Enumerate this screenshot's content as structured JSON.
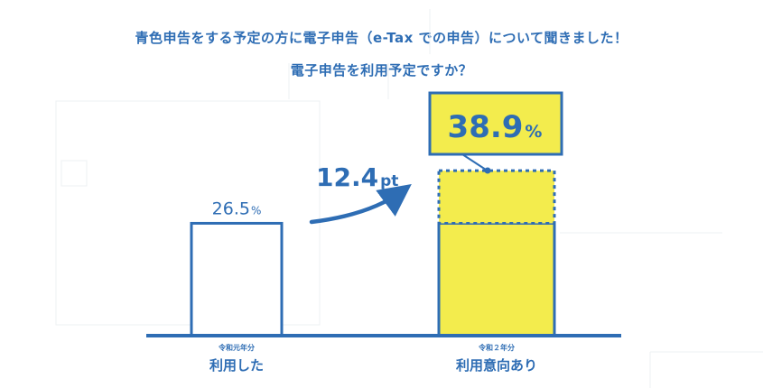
{
  "header": {
    "title_pre": "青色申告をする予定の方に",
    "title_bold": "電子申告（e-Tax での申告）",
    "title_post": "について聞きました！",
    "subtitle": "電子申告を利用予定ですか？"
  },
  "colors": {
    "blue": "#2e6db4",
    "yellow": "#f3ec4d",
    "grid": "#eef0f3"
  },
  "chart_data": {
    "type": "bar",
    "categories": [
      "利用した",
      "利用意向あり"
    ],
    "category_sublabels": [
      "令和元年分",
      "令和２年分"
    ],
    "values": [
      26.5,
      38.9
    ],
    "value_labels": [
      {
        "number": "26.5",
        "unit": "%"
      },
      {
        "number": "38.9",
        "unit": "%"
      }
    ],
    "change": {
      "number": "12.4",
      "unit": "pt"
    },
    "ylim": [
      0,
      50
    ],
    "grid": false,
    "legend": "none"
  }
}
